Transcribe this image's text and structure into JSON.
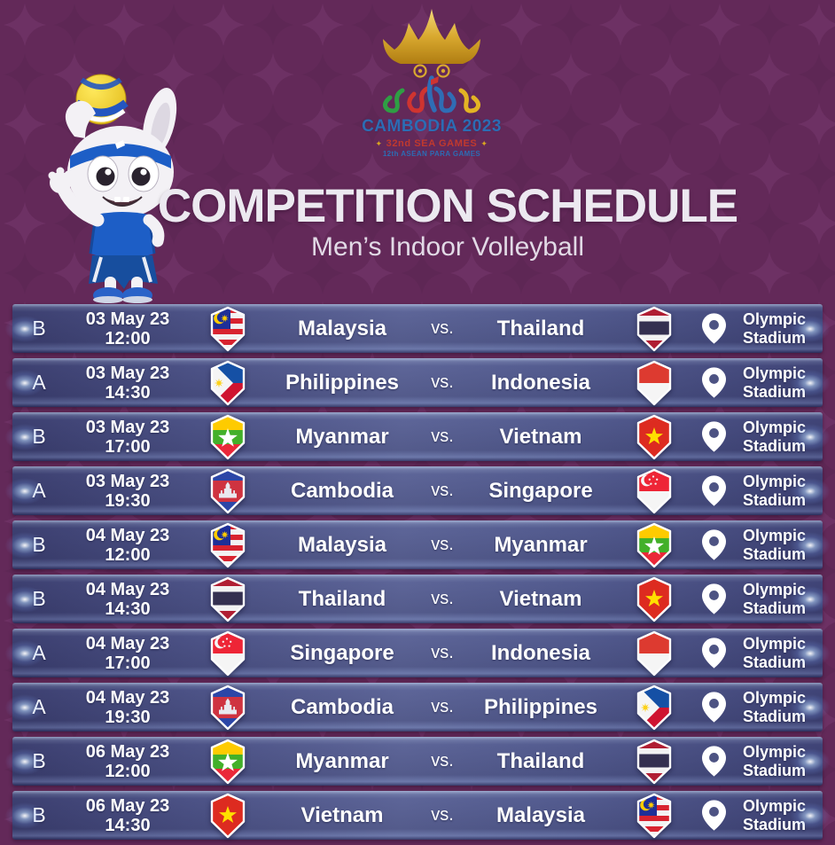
{
  "header": {
    "title": "COMPETITION SCHEDULE",
    "subtitle": "Men&#8217;s Indoor Volleyball"
  },
  "logo": {
    "country_year": "CAMBODIA 2023",
    "games": "32nd SEA GAMES",
    "para_games": "12th ASEAN PARA GAMES",
    "bullet": "✦"
  },
  "labels": {
    "vs": "vs."
  },
  "mascot": "sea-games-rabbit-mascot-with-volleyball",
  "colors": {
    "background_purple": "#632959",
    "row_blue_start": "#3c3f70",
    "row_blue_mid": "#5d6598",
    "row_blue_end": "#3f4376",
    "text_white": "#ffffff",
    "logo_blue": "#2c6cb4",
    "logo_red": "#c0392e",
    "gold": "#d9a520"
  },
  "matches": [
    {
      "group": "B",
      "date": "03 May 23",
      "time": "12:00",
      "team1": "Malaysia",
      "flag1": "malaysia",
      "team2": "Thailand",
      "flag2": "thailand",
      "venue_line1": "Olympic",
      "venue_line2": "Stadium"
    },
    {
      "group": "A",
      "date": "03 May 23",
      "time": "14:30",
      "team1": "Philippines",
      "flag1": "philippines",
      "team2": "Indonesia",
      "flag2": "indonesia",
      "venue_line1": "Olympic",
      "venue_line2": "Stadium"
    },
    {
      "group": "B",
      "date": "03 May 23",
      "time": "17:00",
      "team1": "Myanmar",
      "flag1": "myanmar",
      "team2": "Vietnam",
      "flag2": "vietnam",
      "venue_line1": "Olympic",
      "venue_line2": "Stadium"
    },
    {
      "group": "A",
      "date": "03 May 23",
      "time": "19:30",
      "team1": "Cambodia",
      "flag1": "cambodia",
      "team2": "Singapore",
      "flag2": "singapore",
      "venue_line1": "Olympic",
      "venue_line2": "Stadium"
    },
    {
      "group": "B",
      "date": "04 May 23",
      "time": "12:00",
      "team1": "Malaysia",
      "flag1": "malaysia",
      "team2": "Myanmar",
      "flag2": "myanmar",
      "venue_line1": "Olympic",
      "venue_line2": "Stadium"
    },
    {
      "group": "B",
      "date": "04 May 23",
      "time": "14:30",
      "team1": "Thailand",
      "flag1": "thailand",
      "team2": "Vietnam",
      "flag2": "vietnam",
      "venue_line1": "Olympic",
      "venue_line2": "Stadium"
    },
    {
      "group": "A",
      "date": "04 May 23",
      "time": "17:00",
      "team1": "Singapore",
      "flag1": "singapore",
      "team2": "Indonesia",
      "flag2": "indonesia",
      "venue_line1": "Olympic",
      "venue_line2": "Stadium"
    },
    {
      "group": "A",
      "date": "04 May 23",
      "time": "19:30",
      "team1": "Cambodia",
      "flag1": "cambodia",
      "team2": "Philippines",
      "flag2": "philippines",
      "venue_line1": "Olympic",
      "venue_line2": "Stadium"
    },
    {
      "group": "B",
      "date": "06 May 23",
      "time": "12:00",
      "team1": "Myanmar",
      "flag1": "myanmar",
      "team2": "Thailand",
      "flag2": "thailand",
      "venue_line1": "Olympic",
      "venue_line2": "Stadium"
    },
    {
      "group": "B",
      "date": "06 May 23",
      "time": "14:30",
      "team1": "Vietnam",
      "flag1": "vietnam",
      "team2": "Malaysia",
      "flag2": "malaysia",
      "venue_line1": "Olympic",
      "venue_line2": "Stadium"
    }
  ]
}
